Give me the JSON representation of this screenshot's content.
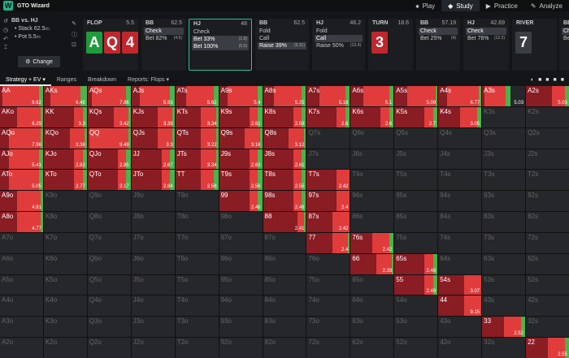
{
  "app": {
    "title": "GTO Wizard",
    "logo": "W"
  },
  "nav": [
    {
      "label": "Play",
      "icon": "♠",
      "active": false
    },
    {
      "label": "Study",
      "icon": "◆",
      "active": true
    },
    {
      "label": "Practice",
      "icon": "▶",
      "active": false
    },
    {
      "label": "Analyze",
      "icon": "✎",
      "active": false
    }
  ],
  "info": {
    "title": "BB vs. HJ",
    "stack": "Stack 62.5",
    "stack_unit": "bb",
    "pot": "Pot 5.5",
    "pot_unit": "bb",
    "button": "Change"
  },
  "panels": [
    {
      "id": "flop",
      "title": "FLOP",
      "num": "5.5",
      "cards": [
        {
          "rank": "A",
          "color": "#1f9b3c"
        },
        {
          "rank": "Q",
          "color": "#c0272d"
        },
        {
          "rank": "4",
          "color": "#c0272d"
        }
      ]
    },
    {
      "id": "bb1",
      "title": "BB",
      "num": "62.5",
      "actions": [
        {
          "label": "Check",
          "freq": "",
          "sel": true
        },
        {
          "label": "Bet 82%",
          "freq": "(4.5)",
          "sel": false
        }
      ]
    },
    {
      "id": "hj1",
      "title": "HJ",
      "num": "48",
      "hl": true,
      "actions": [
        {
          "label": "Check",
          "freq": "",
          "sel": false
        },
        {
          "label": "Bet 33%",
          "freq": "(1.8)",
          "sel": true
        },
        {
          "label": "Bet 100%",
          "freq": "(5.5)",
          "sel": true
        }
      ]
    },
    {
      "id": "bb2",
      "title": "BB",
      "num": "62.5",
      "actions": [
        {
          "label": "Fold",
          "freq": "",
          "sel": false
        },
        {
          "label": "Call",
          "freq": "",
          "sel": false
        },
        {
          "label": "Raise 39%",
          "freq": "(5.31)",
          "sel": true
        }
      ]
    },
    {
      "id": "hj2",
      "title": "HJ",
      "num": "46.2",
      "actions": [
        {
          "label": "Fold",
          "freq": "",
          "sel": false
        },
        {
          "label": "Call",
          "freq": "",
          "sel": true
        },
        {
          "label": "Raise 50%",
          "freq": "(13.4)",
          "sel": false
        }
      ]
    },
    {
      "id": "turn",
      "title": "TURN",
      "num": "18.6",
      "cards": [
        {
          "rank": "3",
          "color": "#c0272d"
        }
      ]
    },
    {
      "id": "bb3",
      "title": "BB",
      "num": "57.19",
      "actions": [
        {
          "label": "Check",
          "freq": "",
          "sel": true
        },
        {
          "label": "Bet 25%",
          "freq": "(4)",
          "sel": false
        }
      ]
    },
    {
      "id": "hj3",
      "title": "HJ",
      "num": "42.69",
      "actions": [
        {
          "label": "Check",
          "freq": "",
          "sel": true
        },
        {
          "label": "Bet 76%",
          "freq": "(12.2)",
          "sel": false
        }
      ]
    },
    {
      "id": "river",
      "title": "RIVER",
      "num": "",
      "cards": [
        {
          "rank": "7",
          "color": "#3a3d42"
        }
      ]
    },
    {
      "id": "bb4",
      "title": "BB",
      "num": "",
      "actions": [
        {
          "label": "Ch",
          "freq": "",
          "sel": true
        },
        {
          "label": "Be",
          "freq": "",
          "sel": false
        }
      ]
    }
  ],
  "tabs": [
    {
      "label": "Strategy + EV ▾",
      "active": true
    },
    {
      "label": "Ranges",
      "active": false
    },
    {
      "label": "Breakdown",
      "active": false
    },
    {
      "label": "Reports: Flops ▾",
      "active": false
    }
  ],
  "grid": [
    [
      [
        "AA",
        8.62,
        [
          5,
          85,
          10
        ]
      ],
      [
        "AKs",
        6.48,
        [
          15,
          70,
          15
        ]
      ],
      [
        "AQs",
        7.86,
        [
          10,
          80,
          10
        ]
      ],
      [
        "AJs",
        5.93,
        [
          20,
          70,
          10
        ]
      ],
      [
        "ATs",
        5.62,
        [
          25,
          65,
          10
        ]
      ],
      [
        "A9s",
        5.4,
        [
          20,
          70,
          10
        ]
      ],
      [
        "A8s",
        5.25,
        [
          25,
          65,
          10
        ]
      ],
      [
        "A7s",
        5.18,
        [
          30,
          60,
          10
        ]
      ],
      [
        "A6s",
        5.1,
        [
          30,
          60,
          10
        ]
      ],
      [
        "A5s",
        5.09,
        [
          30,
          65,
          5
        ]
      ],
      [
        "A4s",
        6.77,
        [
          20,
          75,
          5
        ]
      ],
      [
        "A3s",
        5.03,
        [
          5,
          50,
          10
        ]
      ],
      [
        "A2s",
        5.03,
        [
          60,
          30,
          10
        ]
      ]
    ],
    [
      [
        "AKo",
        6.29,
        [
          40,
          55,
          5
        ]
      ],
      [
        "KK",
        3.3,
        [
          70,
          20,
          10
        ]
      ],
      [
        "KQs",
        3.42,
        [
          60,
          35,
          5
        ]
      ],
      [
        "KJs",
        3.38,
        [
          60,
          35,
          5
        ]
      ],
      [
        "KTs",
        3.34,
        [
          60,
          35,
          5
        ]
      ],
      [
        "K9s",
        2.61,
        [
          70,
          20,
          10
        ]
      ],
      [
        "K8s",
        2.59,
        [
          70,
          20,
          10
        ]
      ],
      [
        "K7s",
        2.6,
        [
          70,
          20,
          10
        ]
      ],
      [
        "K6s",
        2.6,
        [
          70,
          20,
          10
        ]
      ],
      [
        "K5s",
        2.7,
        [
          70,
          20,
          10
        ]
      ],
      [
        "K4s",
        3.05,
        [
          50,
          40,
          10
        ]
      ],
      [
        "K3s",
        "",
        null
      ],
      [
        "K2s",
        "",
        null
      ]
    ],
    [
      [
        "AQo",
        7.98,
        [
          20,
          75,
          5
        ]
      ],
      [
        "KQo",
        3.38,
        [
          60,
          35,
          5
        ]
      ],
      [
        "QQ",
        9.49,
        [
          5,
          90,
          5
        ]
      ],
      [
        "QJs",
        3.3,
        [
          60,
          35,
          5
        ]
      ],
      [
        "QTs",
        3.22,
        [
          60,
          35,
          5
        ]
      ],
      [
        "Q9s",
        3.16,
        [
          60,
          35,
          5
        ]
      ],
      [
        "Q8s",
        3.12,
        [
          60,
          35,
          5
        ]
      ],
      [
        "Q7s",
        "",
        null
      ],
      [
        "Q6s",
        "",
        null
      ],
      [
        "Q5s",
        "",
        null
      ],
      [
        "Q4s",
        "",
        null
      ],
      [
        "Q3s",
        "",
        null
      ],
      [
        "Q2s",
        "",
        null
      ]
    ],
    [
      [
        "AJo",
        5.41,
        [
          20,
          70,
          10
        ]
      ],
      [
        "KJo",
        2.82,
        [
          70,
          20,
          10
        ]
      ],
      [
        "QJo",
        2.85,
        [
          70,
          20,
          10
        ]
      ],
      [
        "JJ",
        2.67,
        [
          70,
          20,
          10
        ]
      ],
      [
        "JTs",
        3.34,
        [
          60,
          35,
          5
        ]
      ],
      [
        "J9s",
        2.63,
        [
          70,
          20,
          10
        ]
      ],
      [
        "J8s",
        2.61,
        [
          70,
          20,
          10
        ]
      ],
      [
        "J7s",
        "",
        null
      ],
      [
        "J6s",
        "",
        null
      ],
      [
        "J5s",
        "",
        null
      ],
      [
        "J4s",
        "",
        null
      ],
      [
        "J3s",
        "",
        null
      ],
      [
        "J2s",
        "",
        null
      ]
    ],
    [
      [
        "ATo",
        5.05,
        [
          20,
          70,
          10
        ]
      ],
      [
        "KTo",
        2.77,
        [
          70,
          20,
          10
        ]
      ],
      [
        "QTo",
        3.17,
        [
          70,
          20,
          10
        ]
      ],
      [
        "JTo",
        2.84,
        [
          70,
          20,
          10
        ]
      ],
      [
        "TT",
        2.58,
        [
          60,
          30,
          10
        ]
      ],
      [
        "T9s",
        2.56,
        [
          70,
          20,
          10
        ]
      ],
      [
        "T8s",
        2.55,
        [
          70,
          20,
          10
        ]
      ],
      [
        "T7s",
        2.42,
        [
          70,
          30,
          0
        ]
      ],
      [
        "T6s",
        "",
        null
      ],
      [
        "T5s",
        "",
        null
      ],
      [
        "T4s",
        "",
        null
      ],
      [
        "T3s",
        "",
        null
      ],
      [
        "T2s",
        "",
        null
      ]
    ],
    [
      [
        "A9o",
        4.81,
        [
          40,
          55,
          5
        ]
      ],
      [
        "K9o",
        "",
        null
      ],
      [
        "Q9o",
        "",
        null
      ],
      [
        "J9o",
        "",
        null
      ],
      [
        "T9o",
        "",
        null
      ],
      [
        "99",
        2.46,
        [
          70,
          20,
          10
        ]
      ],
      [
        "98s",
        2.46,
        [
          70,
          20,
          10
        ]
      ],
      [
        "97s",
        2.4,
        [
          70,
          30,
          0
        ]
      ],
      [
        "96s",
        "",
        null
      ],
      [
        "95s",
        "",
        null
      ],
      [
        "94s",
        "",
        null
      ],
      [
        "93s",
        "",
        null
      ],
      [
        "92s",
        "",
        null
      ]
    ],
    [
      [
        "A8o",
        4.77,
        [
          40,
          55,
          5
        ]
      ],
      [
        "K8o",
        "",
        null
      ],
      [
        "Q8o",
        "",
        null
      ],
      [
        "J8o",
        "",
        null
      ],
      [
        "T8o",
        "",
        null
      ],
      [
        "98o",
        "",
        null
      ],
      [
        "88",
        2.41,
        [
          80,
          15,
          5
        ]
      ],
      [
        "87s",
        2.42,
        [
          60,
          40,
          0
        ]
      ],
      [
        "86s",
        "",
        null
      ],
      [
        "85s",
        "",
        null
      ],
      [
        "84s",
        "",
        null
      ],
      [
        "83s",
        "",
        null
      ],
      [
        "82s",
        "",
        null
      ]
    ],
    [
      [
        "A7o",
        "",
        null
      ],
      [
        "K7o",
        "",
        null
      ],
      [
        "Q7o",
        "",
        null
      ],
      [
        "J7o",
        "",
        null
      ],
      [
        "T7o",
        "",
        null
      ],
      [
        "97o",
        "",
        null
      ],
      [
        "87o",
        "",
        null
      ],
      [
        "77",
        2.4,
        [
          60,
          35,
          5
        ]
      ],
      [
        "76s",
        2.42,
        [
          50,
          40,
          10
        ]
      ],
      [
        "75s",
        "",
        null
      ],
      [
        "74s",
        "",
        null
      ],
      [
        "73s",
        "",
        null
      ],
      [
        "72s",
        "",
        null
      ]
    ],
    [
      [
        "A6o",
        "",
        null
      ],
      [
        "K6o",
        "",
        null
      ],
      [
        "Q6o",
        "",
        null
      ],
      [
        "J6o",
        "",
        null
      ],
      [
        "T6o",
        "",
        null
      ],
      [
        "96o",
        "",
        null
      ],
      [
        "86o",
        "",
        null
      ],
      [
        "76o",
        "",
        null
      ],
      [
        "66",
        2.39,
        [
          60,
          35,
          5
        ]
      ],
      [
        "65s",
        2.49,
        [
          70,
          20,
          10
        ]
      ],
      [
        "64s",
        "",
        null
      ],
      [
        "63s",
        "",
        null
      ],
      [
        "62s",
        "",
        null
      ]
    ],
    [
      [
        "A5o",
        "",
        null
      ],
      [
        "K5o",
        "",
        null
      ],
      [
        "Q5o",
        "",
        null
      ],
      [
        "J5o",
        "",
        null
      ],
      [
        "T5o",
        "",
        null
      ],
      [
        "95o",
        "",
        null
      ],
      [
        "85o",
        "",
        null
      ],
      [
        "75o",
        "",
        null
      ],
      [
        "65o",
        "",
        null
      ],
      [
        "55",
        2.49,
        [
          70,
          20,
          10
        ]
      ],
      [
        "54s",
        3.07,
        [
          60,
          40,
          0
        ]
      ],
      [
        "53s",
        "",
        null
      ],
      [
        "52s",
        "",
        null
      ]
    ],
    [
      [
        "A4o",
        "",
        null
      ],
      [
        "K4o",
        "",
        null
      ],
      [
        "Q4o",
        "",
        null
      ],
      [
        "J4o",
        "",
        null
      ],
      [
        "T4o",
        "",
        null
      ],
      [
        "94o",
        "",
        null
      ],
      [
        "84o",
        "",
        null
      ],
      [
        "74o",
        "",
        null
      ],
      [
        "64o",
        "",
        null
      ],
      [
        "54o",
        "",
        null
      ],
      [
        "44",
        9.15,
        [
          60,
          40,
          0
        ]
      ],
      [
        "43s",
        "",
        null
      ],
      [
        "42s",
        "",
        null
      ]
    ],
    [
      [
        "A3o",
        "",
        null
      ],
      [
        "K3o",
        "",
        null
      ],
      [
        "Q3o",
        "",
        null
      ],
      [
        "J3o",
        "",
        null
      ],
      [
        "T3o",
        "",
        null
      ],
      [
        "93o",
        "",
        null
      ],
      [
        "83o",
        "",
        null
      ],
      [
        "73o",
        "",
        null
      ],
      [
        "63o",
        "",
        null
      ],
      [
        "53o",
        "",
        null
      ],
      [
        "43o",
        "",
        null
      ],
      [
        "33",
        2.52,
        [
          50,
          40,
          10
        ]
      ],
      [
        "32s",
        "",
        null
      ]
    ],
    [
      [
        "A2o",
        "",
        null
      ],
      [
        "K2o",
        "",
        null
      ],
      [
        "Q2o",
        "",
        null
      ],
      [
        "J2o",
        "",
        null
      ],
      [
        "T2o",
        "",
        null
      ],
      [
        "92o",
        "",
        null
      ],
      [
        "82o",
        "",
        null
      ],
      [
        "72o",
        "",
        null
      ],
      [
        "62o",
        "",
        null
      ],
      [
        "52o",
        "",
        null
      ],
      [
        "42o",
        "",
        null
      ],
      [
        "32o",
        "",
        null
      ],
      [
        "22",
        2.55,
        [
          50,
          40,
          10
        ]
      ]
    ]
  ],
  "colors": {
    "dark_red": "#8a1c24",
    "red": "#e03c3c",
    "green": "#4bb34a",
    "empty": "#26272a"
  }
}
